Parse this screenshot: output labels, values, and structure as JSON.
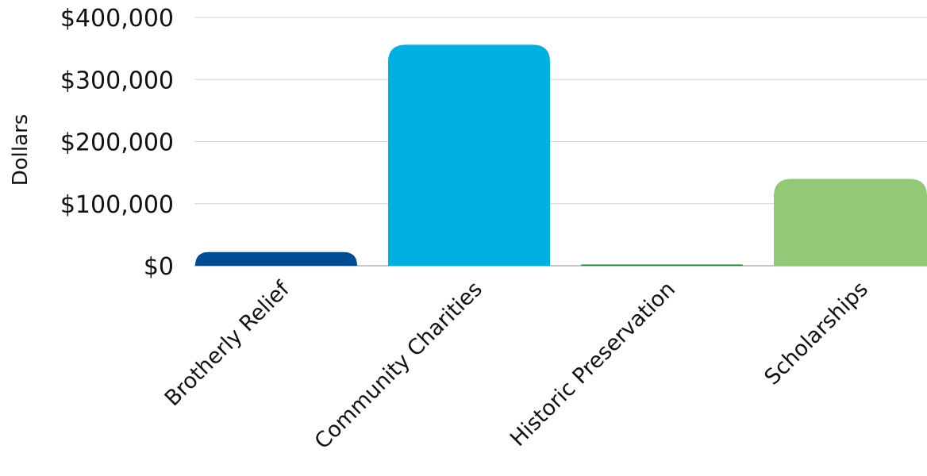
{
  "chart_data": {
    "type": "bar",
    "title": "",
    "xlabel": "",
    "ylabel": "Dollars",
    "ylim": [
      0,
      400000
    ],
    "yticks": [
      0,
      100000,
      200000,
      300000,
      400000
    ],
    "ytick_labels": [
      "$0",
      "$100,000",
      "$200,000",
      "$300,000",
      "$400,000"
    ],
    "categories": [
      "Brotherly Relief",
      "Community Charities",
      "Historic Preservation",
      "Scholarships"
    ],
    "values": [
      22000,
      356000,
      2000,
      140000
    ],
    "colors": [
      "#004b96",
      "#00b0e0",
      "#2e8b3c",
      "#92c977"
    ],
    "grid": true,
    "legend": "none"
  }
}
